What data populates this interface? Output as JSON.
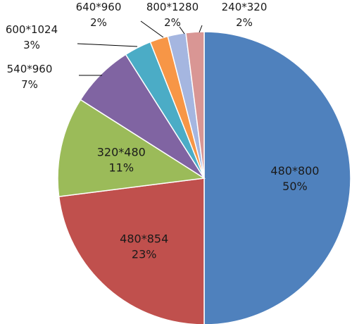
{
  "chart_data": {
    "type": "pie",
    "title": "",
    "slices": [
      {
        "name": "480*800",
        "value": 50,
        "pct_label": "50%",
        "color": "#4f81bd"
      },
      {
        "name": "480*854",
        "value": 23,
        "pct_label": "23%",
        "color": "#c0504d"
      },
      {
        "name": "320*480",
        "value": 11,
        "pct_label": "11%",
        "color": "#9bbb59"
      },
      {
        "name": "540*960",
        "value": 7,
        "pct_label": "7%",
        "color": "#8064a2"
      },
      {
        "name": "600*1024",
        "value": 3,
        "pct_label": "3%",
        "color": "#4bacc6"
      },
      {
        "name": "640*960",
        "value": 2,
        "pct_label": "2%",
        "color": "#f79646"
      },
      {
        "name": "800*1280",
        "value": 2,
        "pct_label": "2%",
        "color": "#a5b6e0"
      },
      {
        "name": "240*320",
        "value": 2,
        "pct_label": "2%",
        "color": "#d99694"
      }
    ],
    "legend": "none"
  }
}
